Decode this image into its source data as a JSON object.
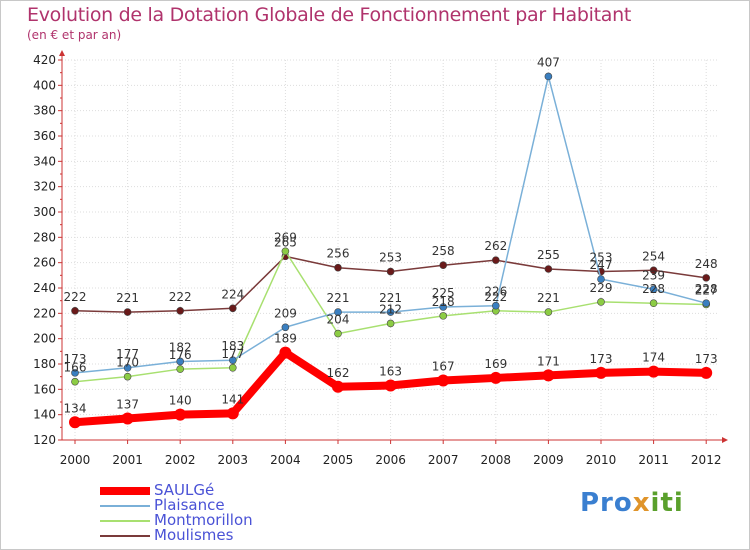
{
  "title": "Evolution de la Dotation Globale de Fonctionnement par Habitant",
  "subtitle": "(en € et par an)",
  "logo": {
    "part1": "Pro",
    "part2": "x",
    "part3": "iti"
  },
  "colors": {
    "title": "#b0336c",
    "axis": "#cc3333",
    "legend_text": "#4a52d6"
  },
  "chart_data": {
    "type": "line",
    "title": "Evolution de la Dotation Globale de Fonctionnement par Habitant",
    "subtitle": "(en € et par an)",
    "xlabel": "",
    "ylabel": "",
    "x": [
      "2000",
      "2001",
      "2002",
      "2003",
      "2004",
      "2005",
      "2006",
      "2007",
      "2008",
      "2009",
      "2010",
      "2011",
      "2012"
    ],
    "ylim": [
      120,
      420
    ],
    "yticks": [
      120,
      140,
      160,
      180,
      200,
      220,
      240,
      260,
      280,
      300,
      320,
      340,
      360,
      380,
      400,
      420
    ],
    "grid": true,
    "legend_position": "bottom-left",
    "series": [
      {
        "name": "SAULGé",
        "color": "#ff0000",
        "marker_fill": "#ff0000",
        "values": [
          134,
          137,
          140,
          141,
          189,
          162,
          163,
          167,
          169,
          171,
          173,
          174,
          173
        ]
      },
      {
        "name": "Plaisance",
        "color": "#7ab0d8",
        "marker_fill": "#3a7fc0",
        "values": [
          173,
          177,
          182,
          183,
          209,
          221,
          221,
          225,
          226,
          407,
          247,
          239,
          228
        ]
      },
      {
        "name": "Montmorillon",
        "color": "#a8e070",
        "marker_fill": "#8ccc44",
        "values": [
          166,
          170,
          176,
          177,
          269,
          204,
          212,
          218,
          222,
          221,
          229,
          228,
          227
        ]
      },
      {
        "name": "Moulismes",
        "color": "#7a3a3a",
        "marker_fill": "#6a1a1a",
        "values": [
          222,
          221,
          222,
          224,
          265,
          256,
          253,
          258,
          262,
          255,
          253,
          254,
          248
        ]
      }
    ]
  }
}
